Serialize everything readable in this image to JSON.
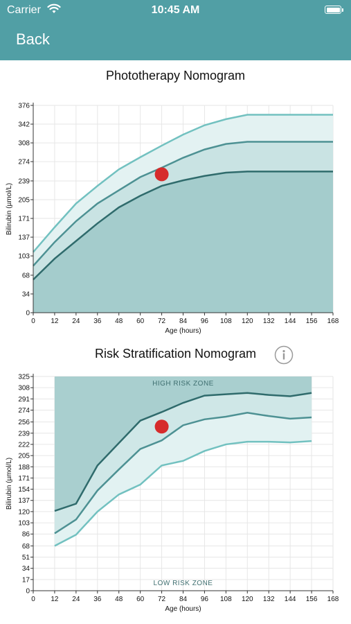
{
  "status_bar": {
    "carrier": "Carrier",
    "time": "10:45 AM"
  },
  "nav": {
    "back_label": "Back"
  },
  "colors": {
    "nav_bg": "#519fa5",
    "line_light": "#72c1c0",
    "line_mid": "#4d9193",
    "line_dark": "#2f6b6c",
    "marker": "#d62b2b"
  },
  "chart_data": [
    {
      "type": "area",
      "title": "Phototherapy Nomogram",
      "xlabel": "Age (hours)",
      "ylabel": "Bilirubin (µmol/L)",
      "xlim": [
        0,
        168
      ],
      "ylim": [
        0,
        376
      ],
      "x_ticks": [
        0,
        12,
        24,
        36,
        48,
        60,
        72,
        84,
        96,
        108,
        120,
        132,
        144,
        156,
        168
      ],
      "y_ticks": [
        0,
        34,
        68,
        103,
        137,
        171,
        205,
        239,
        274,
        308,
        342,
        376
      ],
      "grid": true,
      "series": [
        {
          "x": [
            0,
            12,
            24,
            36,
            48,
            60,
            72,
            84,
            96,
            108,
            120,
            168
          ],
          "y": [
            110,
            155,
            198,
            230,
            260,
            282,
            303,
            323,
            340,
            351,
            359,
            359
          ]
        },
        {
          "x": [
            0,
            12,
            24,
            36,
            48,
            60,
            72,
            84,
            96,
            108,
            120,
            168
          ],
          "y": [
            85,
            128,
            166,
            198,
            222,
            246,
            263,
            281,
            296,
            306,
            310,
            310
          ]
        },
        {
          "x": [
            0,
            12,
            24,
            36,
            48,
            60,
            72,
            84,
            96,
            108,
            120,
            168
          ],
          "y": [
            60,
            98,
            130,
            162,
            191,
            212,
            230,
            240,
            248,
            254,
            256,
            256
          ]
        }
      ],
      "marker": {
        "x": 72,
        "y": 251
      }
    },
    {
      "type": "area",
      "title": "Risk Stratification Nomogram",
      "xlabel": "Age (hours)",
      "ylabel": "Bilirubin (µmol/L)",
      "xlim": [
        0,
        168
      ],
      "ylim": [
        0,
        325
      ],
      "x_ticks": [
        0,
        12,
        24,
        36,
        48,
        60,
        72,
        84,
        96,
        108,
        120,
        132,
        144,
        156,
        168
      ],
      "y_ticks": [
        0,
        17,
        34,
        51,
        68,
        86,
        103,
        120,
        137,
        154,
        171,
        188,
        205,
        222,
        239,
        256,
        274,
        291,
        308,
        325
      ],
      "grid": true,
      "high_zone_label": "HIGH RISK ZONE",
      "low_zone_label": "LOW RISK ZONE",
      "series": [
        {
          "x": [
            12,
            24,
            36,
            48,
            60,
            72,
            84,
            96,
            108,
            120,
            132,
            144,
            156
          ],
          "y": [
            121,
            132,
            190,
            224,
            258,
            271,
            285,
            296,
            298,
            300,
            297,
            295,
            300
          ]
        },
        {
          "x": [
            12,
            24,
            36,
            48,
            60,
            72,
            84,
            96,
            108,
            120,
            132,
            144,
            156
          ],
          "y": [
            87,
            108,
            152,
            184,
            215,
            228,
            251,
            260,
            264,
            270,
            265,
            261,
            263
          ]
        },
        {
          "x": [
            12,
            24,
            36,
            48,
            60,
            72,
            84,
            96,
            108,
            120,
            132,
            144,
            156
          ],
          "y": [
            68,
            85,
            120,
            146,
            161,
            190,
            197,
            212,
            222,
            226,
            226,
            225,
            227
          ]
        }
      ],
      "marker": {
        "x": 72,
        "y": 249
      }
    }
  ]
}
